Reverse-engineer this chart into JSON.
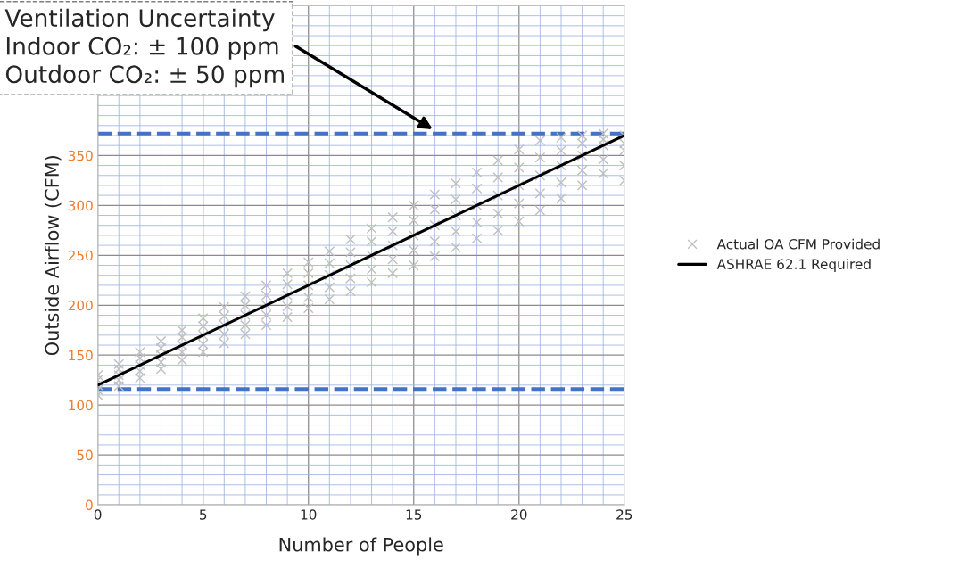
{
  "chart_data": {
    "type": "scatter",
    "xlabel": "Number of People",
    "ylabel": "Outside Airflow (CFM)",
    "xlim": [
      0,
      25
    ],
    "xticks": [
      0,
      {
        "value": 1,
        "label": null
      },
      {
        "value": 2,
        "label": null
      },
      {
        "value": 3,
        "label": null
      },
      {
        "value": 4,
        "label": null
      },
      5,
      {
        "value": 6,
        "label": null
      },
      {
        "value": 7,
        "label": null
      },
      {
        "value": 8,
        "label": null
      },
      {
        "value": 9,
        "label": null
      },
      10,
      {
        "value": 11,
        "label": null
      },
      {
        "value": 12,
        "label": null
      },
      {
        "value": 13,
        "label": null
      },
      {
        "value": 14,
        "label": null
      },
      15,
      {
        "value": 16,
        "label": null
      },
      {
        "value": 17,
        "label": null
      },
      {
        "value": 18,
        "label": null
      },
      {
        "value": 19,
        "label": null
      },
      20,
      {
        "value": 21,
        "label": null
      },
      {
        "value": 22,
        "label": null
      },
      {
        "value": 23,
        "label": null
      },
      {
        "value": 24,
        "label": null
      },
      25
    ],
    "ylim": [
      0,
      500
    ],
    "yticks": [
      0,
      {
        "value": 10,
        "label": null
      },
      {
        "value": 20,
        "label": null
      },
      {
        "value": 30,
        "label": null
      },
      {
        "value": 40,
        "label": null
      },
      50,
      {
        "value": 60,
        "label": null
      },
      {
        "value": 70,
        "label": null
      },
      {
        "value": 80,
        "label": null
      },
      {
        "value": 90,
        "label": null
      },
      100,
      {
        "value": 110,
        "label": null
      },
      {
        "value": 120,
        "label": null
      },
      {
        "value": 130,
        "label": null
      },
      {
        "value": 140,
        "label": null
      },
      150,
      {
        "value": 160,
        "label": null
      },
      {
        "value": 170,
        "label": null
      },
      {
        "value": 180,
        "label": null
      },
      {
        "value": 190,
        "label": null
      },
      200,
      {
        "value": 210,
        "label": null
      },
      {
        "value": 220,
        "label": null
      },
      {
        "value": 230,
        "label": null
      },
      {
        "value": 240,
        "label": null
      },
      250,
      {
        "value": 260,
        "label": null
      },
      {
        "value": 270,
        "label": null
      },
      {
        "value": 280,
        "label": null
      },
      {
        "value": 290,
        "label": null
      },
      300,
      {
        "value": 310,
        "label": null
      },
      {
        "value": 320,
        "label": null
      },
      {
        "value": 330,
        "label": null
      },
      {
        "value": 340,
        "label": null
      },
      350,
      {
        "value": 360,
        "label": null
      },
      {
        "value": 370,
        "label": null
      },
      {
        "value": 380,
        "label": null
      },
      {
        "value": 390,
        "label": null
      },
      {
        "value": 400,
        "label": null
      },
      {
        "value": 410,
        "label": null
      },
      {
        "value": 420,
        "label": null
      },
      {
        "value": 430,
        "label": null
      },
      {
        "value": 440,
        "label": null
      },
      {
        "value": 450,
        "label": null
      },
      {
        "value": 460,
        "label": null
      },
      {
        "value": 470,
        "label": null
      },
      {
        "value": 480,
        "label": null
      },
      {
        "value": 490,
        "label": null
      },
      {
        "value": 500,
        "label": null
      }
    ],
    "grid": true,
    "legend": "right",
    "marker": "cross",
    "series": [
      {
        "name": "Actual OA CFM Provided",
        "color": "#bfbfbf",
        "x": [
          0,
          0,
          0,
          0,
          0,
          1,
          1,
          1,
          1,
          1,
          2,
          2,
          2,
          2,
          2,
          3,
          3,
          3,
          3,
          3,
          4,
          4,
          4,
          4,
          4,
          5,
          5,
          5,
          5,
          5,
          6,
          6,
          6,
          6,
          6,
          7,
          7,
          7,
          7,
          7,
          8,
          8,
          8,
          8,
          8,
          9,
          9,
          9,
          9,
          9,
          10,
          10,
          10,
          10,
          10,
          11,
          11,
          11,
          11,
          11,
          12,
          12,
          12,
          12,
          12,
          13,
          13,
          13,
          13,
          13,
          14,
          14,
          14,
          14,
          14,
          15,
          15,
          15,
          15,
          15,
          16,
          16,
          16,
          16,
          16,
          17,
          17,
          17,
          17,
          17,
          18,
          18,
          18,
          18,
          18,
          19,
          19,
          19,
          19,
          19,
          20,
          20,
          20,
          20,
          20,
          21,
          21,
          21,
          21,
          21,
          22,
          22,
          22,
          22,
          22,
          23,
          23,
          23,
          23,
          23,
          24,
          24,
          24,
          24,
          24,
          25,
          25,
          25,
          25,
          25
        ],
        "values": [
          110,
          115,
          120,
          125,
          130,
          119,
          125,
          130,
          136,
          141,
          127,
          134,
          140,
          147,
          153,
          136,
          143,
          150,
          157,
          164,
          145,
          153,
          160,
          168,
          175,
          153,
          161,
          170,
          179,
          187,
          162,
          171,
          180,
          189,
          198,
          171,
          180,
          190,
          200,
          209,
          180,
          190,
          200,
          210,
          220,
          188,
          199,
          210,
          221,
          232,
          197,
          208,
          220,
          232,
          243,
          206,
          218,
          230,
          242,
          254,
          214,
          227,
          240,
          253,
          266,
          223,
          236,
          250,
          264,
          277,
          232,
          246,
          260,
          274,
          288,
          240,
          255,
          270,
          285,
          300,
          249,
          264,
          280,
          296,
          311,
          258,
          274,
          290,
          306,
          322,
          267,
          283,
          300,
          317,
          333,
          275,
          292,
          310,
          328,
          345,
          284,
          302,
          320,
          338,
          356,
          295,
          312,
          330,
          348,
          365,
          307,
          323,
          340,
          355,
          368,
          320,
          335,
          350,
          362,
          370,
          332,
          346,
          360,
          366,
          372,
          325,
          340,
          355,
          362,
          370
        ]
      },
      {
        "name": "ASHRAE 62.1 Required",
        "type": "line",
        "color": "#000000",
        "marker": "none",
        "line_style": "solid",
        "x": [
          0,
          25
        ],
        "values": [
          120,
          370
        ]
      }
    ],
    "ref_lines": [
      {
        "axis": "y",
        "value": 372,
        "label": null,
        "color": "#4472c4",
        "line_style": "dashed"
      },
      {
        "axis": "y",
        "value": 116,
        "label": null,
        "color": "#4472c4",
        "line_style": "dashed"
      }
    ],
    "annotations": [
      "Ventilation Uncertainty\nIndoor CO₂: ± 100 ppm\nOutdoor CO₂: ± 50 ppm"
    ]
  }
}
